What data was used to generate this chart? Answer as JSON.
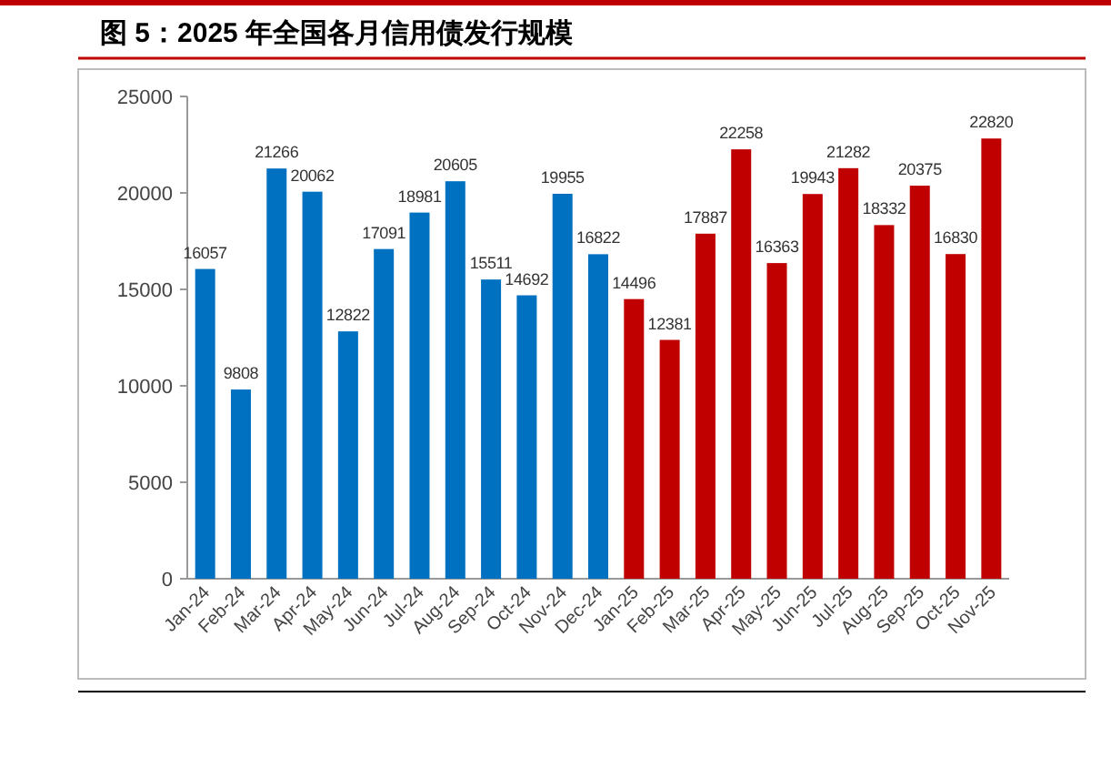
{
  "chart_data": {
    "type": "bar",
    "title": "图 5：2025 年全国各月信用债发行规模",
    "categories": [
      "Jan-24",
      "Feb-24",
      "Mar-24",
      "Apr-24",
      "May-24",
      "Jun-24",
      "Jul-24",
      "Aug-24",
      "Sep-24",
      "Oct-24",
      "Nov-24",
      "Dec-24",
      "Jan-25",
      "Feb-25",
      "Mar-25",
      "Apr-25",
      "May-25",
      "Jun-25",
      "Jul-25",
      "Aug-25",
      "Sep-25",
      "Oct-25",
      "Nov-25"
    ],
    "values": [
      16057,
      9808,
      21266,
      20062,
      12822,
      17091,
      18981,
      20605,
      15511,
      14692,
      19955,
      16822,
      14496,
      12381,
      17887,
      22258,
      16363,
      19943,
      21282,
      18332,
      20375,
      16830,
      22820
    ],
    "colors": [
      "#0070c0",
      "#0070c0",
      "#0070c0",
      "#0070c0",
      "#0070c0",
      "#0070c0",
      "#0070c0",
      "#0070c0",
      "#0070c0",
      "#0070c0",
      "#0070c0",
      "#0070c0",
      "#c00000",
      "#c00000",
      "#c00000",
      "#c00000",
      "#c00000",
      "#c00000",
      "#c00000",
      "#c00000",
      "#c00000",
      "#c00000",
      "#c00000"
    ],
    "ylim": [
      0,
      25000
    ],
    "yticks": [
      0,
      5000,
      10000,
      15000,
      20000,
      25000
    ],
    "data_labels": true
  }
}
